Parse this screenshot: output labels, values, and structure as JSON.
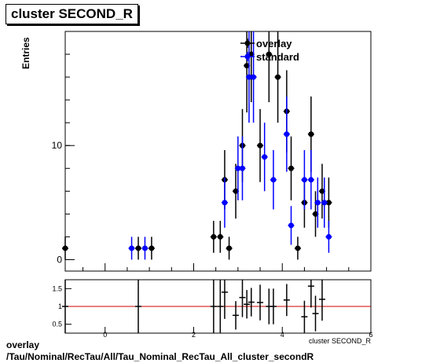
{
  "chart_data": [
    {
      "type": "scatter",
      "title": "cluster SECOND_R",
      "xlabel": "",
      "ylabel": "Entries",
      "xlim": [
        -0.9,
        6
      ],
      "ylim": [
        -1,
        20
      ],
      "ytick_labels": [
        "0",
        "10"
      ],
      "ytick_values": [
        0,
        10
      ],
      "legend": {
        "placement": "top-right",
        "entries": [
          "overlay",
          "standard"
        ]
      },
      "series": [
        {
          "name": "overlay",
          "color": "#000000",
          "marker": "circle",
          "points": [
            {
              "x": -0.9,
              "y": 1,
              "err": 1
            },
            {
              "x": 0.75,
              "y": 1,
              "err": 1
            },
            {
              "x": 1.05,
              "y": 1,
              "err": 1
            },
            {
              "x": 2.45,
              "y": 2,
              "err": 1.4
            },
            {
              "x": 2.6,
              "y": 2,
              "err": 1.4
            },
            {
              "x": 2.7,
              "y": 7,
              "err": 2.6
            },
            {
              "x": 2.8,
              "y": 1,
              "err": 1
            },
            {
              "x": 2.95,
              "y": 6,
              "err": 2.4
            },
            {
              "x": 3.1,
              "y": 10,
              "err": 3.2
            },
            {
              "x": 3.2,
              "y": 17,
              "err": 4.1
            },
            {
              "x": 3.3,
              "y": 18,
              "err": 4.2
            },
            {
              "x": 3.5,
              "y": 10,
              "err": 3.2
            },
            {
              "x": 3.7,
              "y": 18,
              "err": 4.2
            },
            {
              "x": 3.9,
              "y": 16,
              "err": 4
            },
            {
              "x": 4.1,
              "y": 13,
              "err": 3.6
            },
            {
              "x": 4.2,
              "y": 8,
              "err": 2.8
            },
            {
              "x": 4.35,
              "y": 1,
              "err": 1
            },
            {
              "x": 4.5,
              "y": 5,
              "err": 2.2
            },
            {
              "x": 4.65,
              "y": 11,
              "err": 3.3
            },
            {
              "x": 4.75,
              "y": 4,
              "err": 2
            },
            {
              "x": 4.9,
              "y": 6,
              "err": 2.4
            },
            {
              "x": 5.05,
              "y": 5,
              "err": 2.2
            }
          ]
        },
        {
          "name": "standard",
          "color": "#0000ff",
          "marker": "circle",
          "points": [
            {
              "x": 0.6,
              "y": 1,
              "err": 1
            },
            {
              "x": 0.9,
              "y": 1,
              "err": 1
            },
            {
              "x": 2.7,
              "y": 5,
              "err": 2.2
            },
            {
              "x": 3.0,
              "y": 8,
              "err": 2.8
            },
            {
              "x": 3.1,
              "y": 8,
              "err": 2.8
            },
            {
              "x": 3.25,
              "y": 16,
              "err": 4
            },
            {
              "x": 3.35,
              "y": 16,
              "err": 4
            },
            {
              "x": 3.6,
              "y": 9,
              "err": 3
            },
            {
              "x": 3.8,
              "y": 7,
              "err": 2.6
            },
            {
              "x": 4.1,
              "y": 11,
              "err": 3.3
            },
            {
              "x": 4.2,
              "y": 3,
              "err": 1.7
            },
            {
              "x": 4.5,
              "y": 7,
              "err": 2.6
            },
            {
              "x": 4.65,
              "y": 7,
              "err": 2.6
            },
            {
              "x": 4.8,
              "y": 5,
              "err": 2.2
            },
            {
              "x": 4.95,
              "y": 5,
              "err": 2.2
            },
            {
              "x": 5.05,
              "y": 2,
              "err": 1.4
            }
          ]
        }
      ]
    },
    {
      "type": "scatter",
      "title": "",
      "xlabel": "cluster SECOND_R",
      "ylabel": "",
      "xlim": [
        -0.9,
        6
      ],
      "ylim": [
        0.25,
        1.75
      ],
      "xtick_labels": [
        "0",
        "2",
        "4",
        "6"
      ],
      "xtick_values": [
        0,
        2,
        4,
        6
      ],
      "ytick_labels": [
        "0.5",
        "1",
        "1.5"
      ],
      "ytick_values": [
        0.5,
        1,
        1.5
      ],
      "reference_line": {
        "y": 1,
        "color": "#cc0000"
      },
      "series": [
        {
          "name": "",
          "color": "#000000",
          "points": [
            {
              "x": -0.9,
              "y": 1,
              "err": 1.5
            },
            {
              "x": 0.75,
              "y": 1,
              "err": 1.5
            },
            {
              "x": 2.45,
              "y": 1,
              "err": 1.5
            },
            {
              "x": 2.6,
              "y": 1,
              "err": 1.5
            },
            {
              "x": 2.7,
              "y": 1.4,
              "err": 0.75
            },
            {
              "x": 2.95,
              "y": 0.75,
              "err": 0.4
            },
            {
              "x": 3.1,
              "y": 1.25,
              "err": 0.55
            },
            {
              "x": 3.2,
              "y": 1.06,
              "err": 0.4
            },
            {
              "x": 3.3,
              "y": 1.12,
              "err": 0.4
            },
            {
              "x": 3.5,
              "y": 1.11,
              "err": 0.5
            },
            {
              "x": 3.7,
              "y": 1.0,
              "err": 0.5
            },
            {
              "x": 3.8,
              "y": 1.0,
              "err": 0.5
            },
            {
              "x": 4.1,
              "y": 1.18,
              "err": 0.45
            },
            {
              "x": 4.5,
              "y": 0.71,
              "err": 0.45
            },
            {
              "x": 4.65,
              "y": 1.57,
              "err": 0.6
            },
            {
              "x": 4.75,
              "y": 0.8,
              "err": 0.5
            },
            {
              "x": 4.9,
              "y": 1.2,
              "err": 0.6
            }
          ]
        }
      ]
    }
  ],
  "footer": {
    "line1": "overlay",
    "line2": "/Tau/Nominal/RecTau/All/Tau_Nominal_RecTau_All_cluster_secondR"
  }
}
